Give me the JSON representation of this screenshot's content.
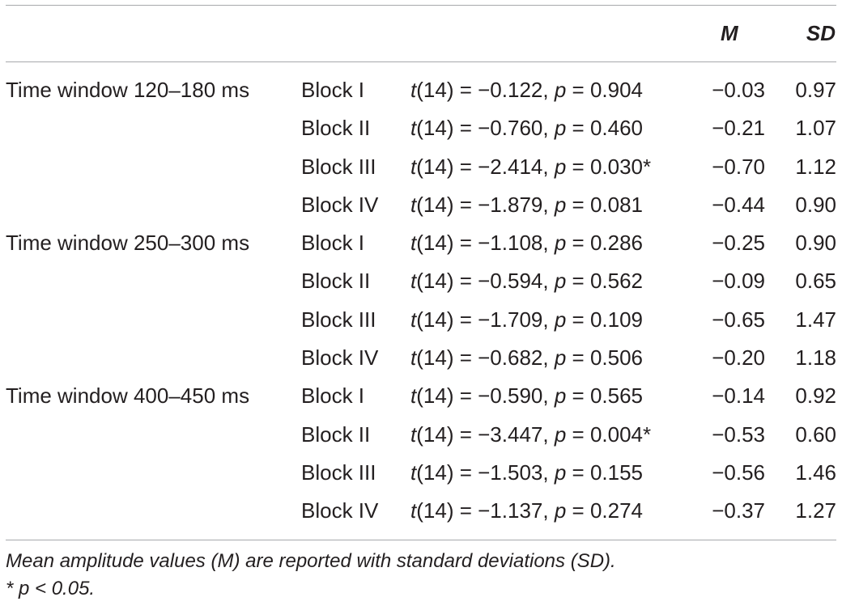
{
  "header": {
    "col_m": "M",
    "col_sd": "SD"
  },
  "rows": [
    {
      "group": "Time window 120–180 ms",
      "block": "Block I",
      "df": "14",
      "t": "−0.122",
      "p": "0.904",
      "sig": "",
      "m": "−0.03",
      "sd": "0.97"
    },
    {
      "group": "",
      "block": "Block II",
      "df": "14",
      "t": "−0.760",
      "p": "0.460",
      "sig": "",
      "m": "−0.21",
      "sd": "1.07"
    },
    {
      "group": "",
      "block": "Block III",
      "df": "14",
      "t": "−2.414",
      "p": "0.030",
      "sig": "*",
      "m": "−0.70",
      "sd": "1.12"
    },
    {
      "group": "",
      "block": "Block IV",
      "df": "14",
      "t": "−1.879",
      "p": "0.081",
      "sig": "",
      "m": "−0.44",
      "sd": "0.90"
    },
    {
      "group": "Time window 250–300 ms",
      "block": "Block I",
      "df": "14",
      "t": "−1.108",
      "p": "0.286",
      "sig": "",
      "m": "−0.25",
      "sd": "0.90"
    },
    {
      "group": "",
      "block": "Block II",
      "df": "14",
      "t": "−0.594",
      "p": "0.562",
      "sig": "",
      "m": "−0.09",
      "sd": "0.65"
    },
    {
      "group": "",
      "block": "Block III",
      "df": "14",
      "t": "−1.709",
      "p": "0.109",
      "sig": "",
      "m": "−0.65",
      "sd": "1.47"
    },
    {
      "group": "",
      "block": "Block IV",
      "df": "14",
      "t": "−0.682",
      "p": "0.506",
      "sig": "",
      "m": "−0.20",
      "sd": "1.18"
    },
    {
      "group": "Time window 400–450 ms",
      "block": "Block I",
      "df": "14",
      "t": "−0.590",
      "p": "0.565",
      "sig": "",
      "m": "−0.14",
      "sd": "0.92"
    },
    {
      "group": "",
      "block": "Block II",
      "df": "14",
      "t": "−3.447",
      "p": "0.004",
      "sig": "*",
      "m": "−0.53",
      "sd": "0.60"
    },
    {
      "group": "",
      "block": "Block III",
      "df": "14",
      "t": "−1.503",
      "p": "0.155",
      "sig": "",
      "m": "−0.56",
      "sd": "1.46"
    },
    {
      "group": "",
      "block": "Block IV",
      "df": "14",
      "t": "−1.137",
      "p": "0.274",
      "sig": "",
      "m": "−0.37",
      "sd": "1.27"
    }
  ],
  "notes": {
    "line1": "Mean amplitude values (M) are reported with standard deviations (SD).",
    "line2": "* p < 0.05."
  }
}
